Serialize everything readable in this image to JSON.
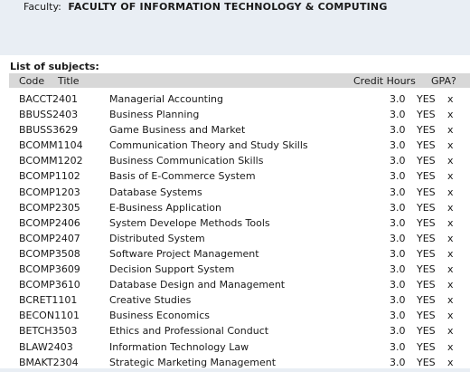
{
  "faculty": {
    "label": "Faculty:",
    "name": "FACULTY OF INFORMATION TECHNOLOGY & COMPUTING"
  },
  "list": {
    "title": "List of subjects:",
    "headers": {
      "code": "Code",
      "title": "Title",
      "credit": "Credit Hours",
      "gpa": "GPA?"
    },
    "rows": [
      {
        "code": "BACCT2401",
        "title": "Managerial Accounting",
        "credit": "3.0",
        "gpa": "YES",
        "remove": "x"
      },
      {
        "code": "BBUSS2403",
        "title": "Business Planning",
        "credit": "3.0",
        "gpa": "YES",
        "remove": "x"
      },
      {
        "code": "BBUSS3629",
        "title": "Game Business and Market",
        "credit": "3.0",
        "gpa": "YES",
        "remove": "x"
      },
      {
        "code": "BCOMM1104",
        "title": "Communication Theory and Study Skills",
        "credit": "3.0",
        "gpa": "YES",
        "remove": "x"
      },
      {
        "code": "BCOMM1202",
        "title": "Business Communication Skills",
        "credit": "3.0",
        "gpa": "YES",
        "remove": "x"
      },
      {
        "code": "BCOMP1102",
        "title": "Basis of E-Commerce System",
        "credit": "3.0",
        "gpa": "YES",
        "remove": "x"
      },
      {
        "code": "BCOMP1203",
        "title": "Database Systems",
        "credit": "3.0",
        "gpa": "YES",
        "remove": "x"
      },
      {
        "code": "BCOMP2305",
        "title": "E-Business Application",
        "credit": "3.0",
        "gpa": "YES",
        "remove": "x"
      },
      {
        "code": "BCOMP2406",
        "title": "System Develope Methods Tools",
        "credit": "3.0",
        "gpa": "YES",
        "remove": "x"
      },
      {
        "code": "BCOMP2407",
        "title": "Distributed System",
        "credit": "3.0",
        "gpa": "YES",
        "remove": "x"
      },
      {
        "code": "BCOMP3508",
        "title": "Software Project Management",
        "credit": "3.0",
        "gpa": "YES",
        "remove": "x"
      },
      {
        "code": "BCOMP3609",
        "title": "Decision Support System",
        "credit": "3.0",
        "gpa": "YES",
        "remove": "x"
      },
      {
        "code": "BCOMP3610",
        "title": "Database Design and Management",
        "credit": "3.0",
        "gpa": "YES",
        "remove": "x"
      },
      {
        "code": "BCRET1101",
        "title": "Creative Studies",
        "credit": "3.0",
        "gpa": "YES",
        "remove": "x"
      },
      {
        "code": "BECON1101",
        "title": "Business Economics",
        "credit": "3.0",
        "gpa": "YES",
        "remove": "x"
      },
      {
        "code": "BETCH3503",
        "title": "Ethics and Professional Conduct",
        "credit": "3.0",
        "gpa": "YES",
        "remove": "x"
      },
      {
        "code": "BLAW2403",
        "title": "Information Technology Law",
        "credit": "3.0",
        "gpa": "YES",
        "remove": "x"
      },
      {
        "code": "BMAKT2304",
        "title": "Strategic Marketing Management",
        "credit": "3.0",
        "gpa": "YES",
        "remove": "x"
      }
    ]
  }
}
